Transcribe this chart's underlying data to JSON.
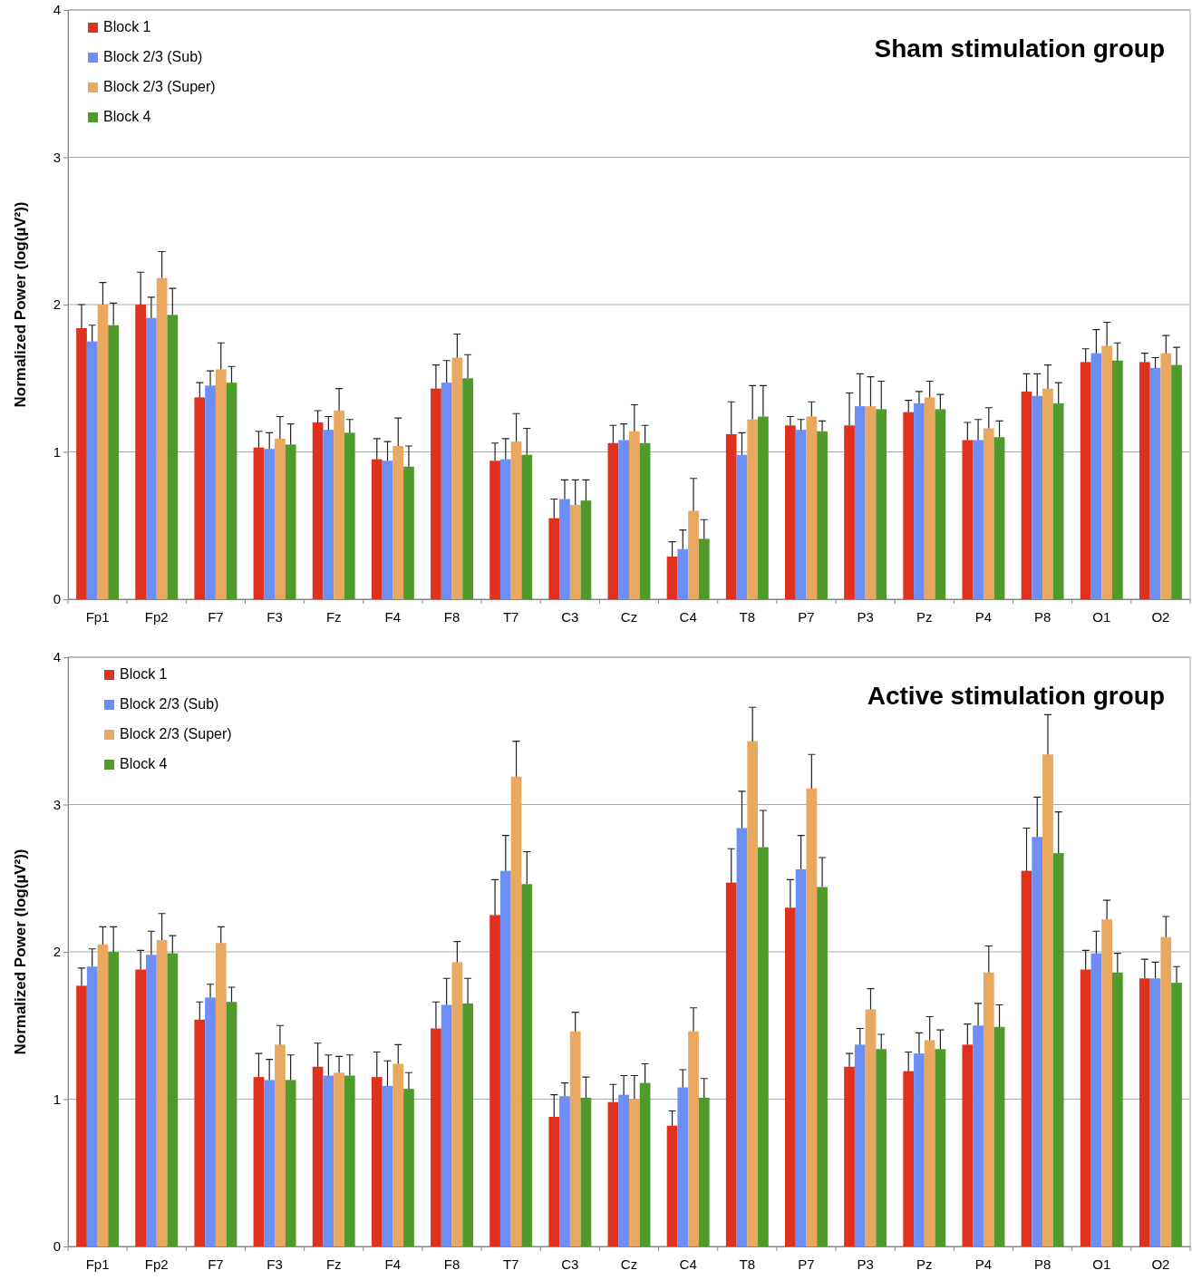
{
  "chart_data": [
    {
      "type": "bar",
      "title": "Sham stimulation group",
      "ylabel": "Normalized Power (log(µV²))",
      "categories": [
        "Fp1",
        "Fp2",
        "F7",
        "F3",
        "Fz",
        "F4",
        "F8",
        "T7",
        "C3",
        "Cz",
        "C4",
        "T8",
        "P7",
        "P3",
        "Pz",
        "P4",
        "P8",
        "O1",
        "O2"
      ],
      "ylim": [
        0,
        4
      ],
      "yticks": [
        0,
        1,
        2,
        3,
        4
      ],
      "grid": "y",
      "legend": "top left",
      "series": [
        {
          "name": "Block 1",
          "color": "#e0301e",
          "values": [
            1.84,
            2.0,
            1.37,
            1.03,
            1.2,
            0.95,
            1.43,
            0.94,
            0.55,
            1.06,
            0.29,
            1.12,
            1.18,
            1.18,
            1.27,
            1.08,
            1.41,
            1.61,
            1.61
          ],
          "errors": [
            [
              1.84,
              2.0
            ],
            [
              2.0,
              2.22
            ],
            [
              1.37,
              1.47
            ],
            [
              1.03,
              1.14
            ],
            [
              1.2,
              1.28
            ],
            [
              0.95,
              1.09
            ],
            [
              1.43,
              1.59
            ],
            [
              0.94,
              1.06
            ],
            [
              0.55,
              0.68
            ],
            [
              1.06,
              1.18
            ],
            [
              0.29,
              0.39
            ],
            [
              1.12,
              1.34
            ],
            [
              1.18,
              1.24
            ],
            [
              1.18,
              1.4
            ],
            [
              1.27,
              1.35
            ],
            [
              1.08,
              1.2
            ],
            [
              1.41,
              1.53
            ],
            [
              1.61,
              1.7
            ],
            [
              1.61,
              1.67
            ]
          ]
        },
        {
          "name": "Block 2/3 (Sub)",
          "color": "#6c8ef5",
          "values": [
            1.75,
            1.91,
            1.45,
            1.02,
            1.15,
            0.94,
            1.47,
            0.95,
            0.68,
            1.08,
            0.34,
            0.98,
            1.15,
            1.31,
            1.33,
            1.08,
            1.38,
            1.67,
            1.57
          ],
          "errors": [
            [
              1.75,
              1.86
            ],
            [
              1.91,
              2.05
            ],
            [
              1.45,
              1.55
            ],
            [
              1.02,
              1.13
            ],
            [
              1.15,
              1.24
            ],
            [
              0.94,
              1.07
            ],
            [
              1.47,
              1.62
            ],
            [
              0.95,
              1.09
            ],
            [
              0.68,
              0.81
            ],
            [
              1.08,
              1.19
            ],
            [
              0.34,
              0.47
            ],
            [
              0.98,
              1.13
            ],
            [
              1.15,
              1.22
            ],
            [
              1.31,
              1.53
            ],
            [
              1.33,
              1.41
            ],
            [
              1.08,
              1.22
            ],
            [
              1.38,
              1.53
            ],
            [
              1.67,
              1.83
            ],
            [
              1.57,
              1.64
            ]
          ]
        },
        {
          "name": "Block 2/3 (Super)",
          "color": "#e8a860",
          "values": [
            2.0,
            2.18,
            1.56,
            1.09,
            1.28,
            1.04,
            1.64,
            1.07,
            0.64,
            1.14,
            0.6,
            1.22,
            1.24,
            1.31,
            1.37,
            1.16,
            1.43,
            1.72,
            1.67
          ],
          "errors": [
            [
              2.0,
              2.15
            ],
            [
              2.18,
              2.36
            ],
            [
              1.56,
              1.74
            ],
            [
              1.09,
              1.24
            ],
            [
              1.28,
              1.43
            ],
            [
              1.04,
              1.23
            ],
            [
              1.64,
              1.8
            ],
            [
              1.07,
              1.26
            ],
            [
              0.64,
              0.81
            ],
            [
              1.14,
              1.32
            ],
            [
              0.6,
              0.82
            ],
            [
              1.22,
              1.45
            ],
            [
              1.24,
              1.34
            ],
            [
              1.31,
              1.51
            ],
            [
              1.37,
              1.48
            ],
            [
              1.16,
              1.3
            ],
            [
              1.43,
              1.59
            ],
            [
              1.72,
              1.88
            ],
            [
              1.67,
              1.79
            ]
          ]
        },
        {
          "name": "Block 4",
          "color": "#4f9a2a",
          "values": [
            1.86,
            1.93,
            1.47,
            1.05,
            1.13,
            0.9,
            1.5,
            0.98,
            0.67,
            1.06,
            0.41,
            1.24,
            1.14,
            1.29,
            1.29,
            1.1,
            1.33,
            1.62,
            1.59
          ],
          "errors": [
            [
              1.86,
              2.01
            ],
            [
              1.93,
              2.11
            ],
            [
              1.47,
              1.58
            ],
            [
              1.05,
              1.19
            ],
            [
              1.13,
              1.22
            ],
            [
              0.9,
              1.04
            ],
            [
              1.5,
              1.66
            ],
            [
              0.98,
              1.16
            ],
            [
              0.67,
              0.81
            ],
            [
              1.06,
              1.18
            ],
            [
              0.41,
              0.54
            ],
            [
              1.24,
              1.45
            ],
            [
              1.14,
              1.21
            ],
            [
              1.29,
              1.48
            ],
            [
              1.29,
              1.39
            ],
            [
              1.1,
              1.21
            ],
            [
              1.33,
              1.47
            ],
            [
              1.62,
              1.74
            ],
            [
              1.59,
              1.71
            ]
          ]
        }
      ]
    },
    {
      "type": "bar",
      "title": "Active stimulation group",
      "ylabel": "Normalized Power (log(µV²))",
      "categories": [
        "Fp1",
        "Fp2",
        "F7",
        "F3",
        "Fz",
        "F4",
        "F8",
        "T7",
        "C3",
        "Cz",
        "C4",
        "T8",
        "P7",
        "P3",
        "Pz",
        "P4",
        "P8",
        "O1",
        "O2"
      ],
      "ylim": [
        0,
        4
      ],
      "yticks": [
        0,
        1,
        2,
        3,
        4
      ],
      "grid": "y",
      "legend": "top left",
      "series": [
        {
          "name": "Block 1",
          "color": "#e0301e",
          "values": [
            1.77,
            1.88,
            1.54,
            1.15,
            1.22,
            1.15,
            1.48,
            2.25,
            0.88,
            0.98,
            0.82,
            2.47,
            2.3,
            1.22,
            1.19,
            1.37,
            2.55,
            1.88,
            1.82
          ],
          "errors": [
            [
              1.77,
              1.89
            ],
            [
              1.88,
              2.01
            ],
            [
              1.54,
              1.66
            ],
            [
              1.15,
              1.31
            ],
            [
              1.22,
              1.38
            ],
            [
              1.15,
              1.32
            ],
            [
              1.48,
              1.66
            ],
            [
              2.25,
              2.49
            ],
            [
              0.88,
              1.03
            ],
            [
              0.98,
              1.1
            ],
            [
              0.82,
              0.92
            ],
            [
              2.47,
              2.7
            ],
            [
              2.3,
              2.49
            ],
            [
              1.22,
              1.31
            ],
            [
              1.19,
              1.32
            ],
            [
              1.37,
              1.51
            ],
            [
              2.55,
              2.84
            ],
            [
              1.88,
              2.01
            ],
            [
              1.82,
              1.95
            ]
          ]
        },
        {
          "name": "Block 2/3 (Sub)",
          "color": "#6c8ef5",
          "values": [
            1.9,
            1.98,
            1.69,
            1.13,
            1.16,
            1.09,
            1.64,
            2.55,
            1.02,
            1.03,
            1.08,
            2.84,
            2.56,
            1.37,
            1.31,
            1.5,
            2.78,
            1.99,
            1.82
          ],
          "errors": [
            [
              1.9,
              2.02
            ],
            [
              1.98,
              2.14
            ],
            [
              1.69,
              1.78
            ],
            [
              1.13,
              1.27
            ],
            [
              1.16,
              1.3
            ],
            [
              1.09,
              1.26
            ],
            [
              1.64,
              1.82
            ],
            [
              2.55,
              2.79
            ],
            [
              1.02,
              1.11
            ],
            [
              1.03,
              1.16
            ],
            [
              1.08,
              1.2
            ],
            [
              2.84,
              3.09
            ],
            [
              2.56,
              2.79
            ],
            [
              1.37,
              1.48
            ],
            [
              1.31,
              1.45
            ],
            [
              1.5,
              1.65
            ],
            [
              2.78,
              3.05
            ],
            [
              1.99,
              2.14
            ],
            [
              1.82,
              1.93
            ]
          ]
        },
        {
          "name": "Block 2/3 (Super)",
          "color": "#e8a860",
          "values": [
            2.05,
            2.08,
            2.06,
            1.37,
            1.18,
            1.24,
            1.93,
            3.19,
            1.46,
            1.0,
            1.46,
            3.43,
            3.11,
            1.61,
            1.4,
            1.86,
            3.34,
            2.22,
            2.1
          ],
          "errors": [
            [
              2.05,
              2.17
            ],
            [
              2.08,
              2.26
            ],
            [
              2.06,
              2.17
            ],
            [
              1.37,
              1.5
            ],
            [
              1.18,
              1.29
            ],
            [
              1.24,
              1.37
            ],
            [
              1.93,
              2.07
            ],
            [
              3.19,
              3.43
            ],
            [
              1.46,
              1.59
            ],
            [
              1.0,
              1.16
            ],
            [
              1.46,
              1.62
            ],
            [
              3.43,
              3.66
            ],
            [
              3.11,
              3.34
            ],
            [
              1.61,
              1.75
            ],
            [
              1.4,
              1.56
            ],
            [
              1.86,
              2.04
            ],
            [
              3.34,
              3.61
            ],
            [
              2.22,
              2.35
            ],
            [
              2.1,
              2.24
            ]
          ]
        },
        {
          "name": "Block 4",
          "color": "#4f9a2a",
          "values": [
            2.0,
            1.99,
            1.66,
            1.13,
            1.16,
            1.07,
            1.65,
            2.46,
            1.01,
            1.11,
            1.01,
            2.71,
            2.44,
            1.34,
            1.34,
            1.49,
            2.67,
            1.86,
            1.79
          ],
          "errors": [
            [
              2.0,
              2.17
            ],
            [
              1.99,
              2.11
            ],
            [
              1.66,
              1.76
            ],
            [
              1.13,
              1.3
            ],
            [
              1.16,
              1.3
            ],
            [
              1.07,
              1.18
            ],
            [
              1.65,
              1.82
            ],
            [
              2.46,
              2.68
            ],
            [
              1.01,
              1.15
            ],
            [
              1.11,
              1.24
            ],
            [
              1.01,
              1.14
            ],
            [
              2.71,
              2.96
            ],
            [
              2.44,
              2.64
            ],
            [
              1.34,
              1.44
            ],
            [
              1.34,
              1.47
            ],
            [
              1.49,
              1.64
            ],
            [
              2.67,
              2.95
            ],
            [
              1.86,
              1.99
            ],
            [
              1.79,
              1.9
            ]
          ]
        }
      ]
    }
  ]
}
